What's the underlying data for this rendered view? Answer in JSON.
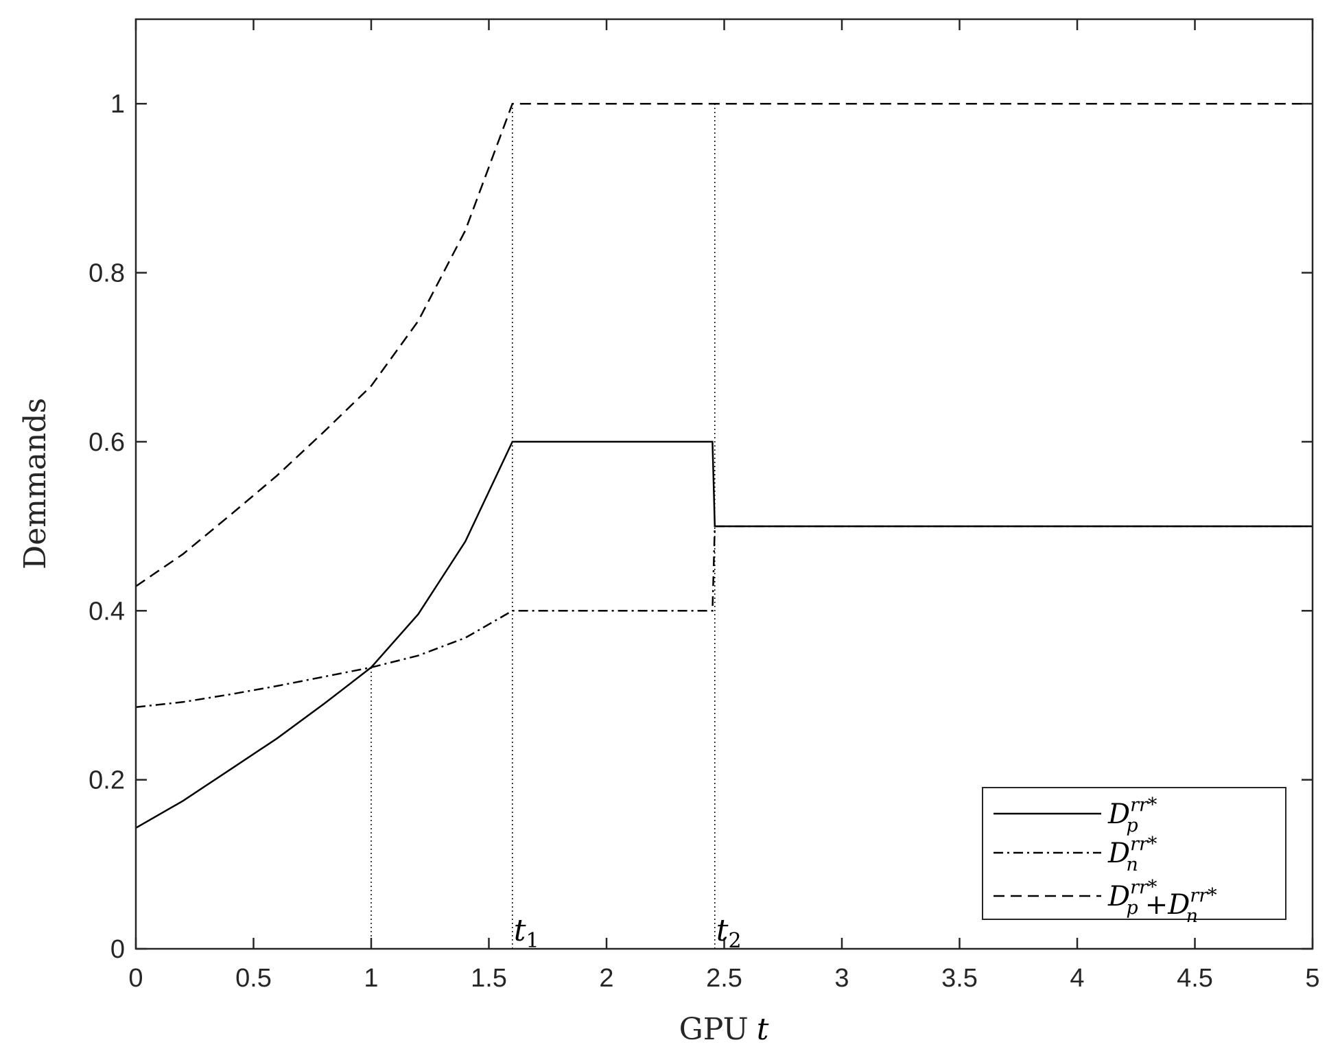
{
  "chart_data": {
    "type": "line",
    "title": "",
    "xlabel": "GPU",
    "xlabel_var": "t",
    "ylabel": "Demmands",
    "xlim": [
      0,
      5
    ],
    "ylim": [
      0,
      1.1
    ],
    "xticks": [
      0,
      0.5,
      1,
      1.5,
      2,
      2.5,
      3,
      3.5,
      4,
      4.5,
      5
    ],
    "xtick_labels": [
      "0",
      "0.5",
      "1",
      "1.5",
      "2",
      "2.5",
      "3",
      "3.5",
      "4",
      "4.5",
      "5"
    ],
    "yticks": [
      0,
      0.2,
      0.4,
      0.6,
      0.8,
      1
    ],
    "ytick_labels": [
      "0",
      "0.2",
      "0.4",
      "0.6",
      "0.8",
      "1"
    ],
    "grid": false,
    "legend_position": "bottom-right",
    "series": [
      {
        "key": "Dp",
        "style": "solid",
        "x": [
          0,
          0.2,
          0.4,
          0.6,
          0.8,
          1.0,
          1.2,
          1.4,
          1.6,
          2.45,
          2.46,
          5
        ],
        "y": [
          0.143,
          0.175,
          0.212,
          0.249,
          0.29,
          0.333,
          0.396,
          0.482,
          0.6,
          0.6,
          0.5,
          0.5
        ]
      },
      {
        "key": "Dn",
        "style": "dashdot",
        "x": [
          0,
          0.2,
          0.4,
          0.6,
          0.8,
          1.0,
          1.2,
          1.4,
          1.6,
          2.45,
          2.46,
          5
        ],
        "y": [
          0.286,
          0.292,
          0.301,
          0.311,
          0.322,
          0.333,
          0.347,
          0.368,
          0.4,
          0.4,
          0.5,
          0.5
        ]
      },
      {
        "key": "Dsum",
        "style": "dashed",
        "x": [
          0,
          0.2,
          0.4,
          0.6,
          0.8,
          1.0,
          1.2,
          1.4,
          1.6,
          5
        ],
        "y": [
          0.429,
          0.467,
          0.513,
          0.56,
          0.612,
          0.666,
          0.743,
          0.85,
          1.0,
          1.0
        ]
      }
    ],
    "reference_lines": [
      {
        "x": 1.0,
        "y_top": 0.333
      },
      {
        "x": 1.6,
        "y_top": 1.0,
        "label": "t",
        "sub": "1"
      },
      {
        "x": 2.46,
        "y_top": 1.0,
        "label": "t",
        "sub": "2"
      }
    ],
    "legend": {
      "entries": [
        {
          "key": "Dp",
          "base": "D",
          "sub": "p",
          "sup": "rr*"
        },
        {
          "key": "Dn",
          "base": "D",
          "sub": "n",
          "sup": "rr*"
        },
        {
          "key": "Dsum",
          "base": "D",
          "sub": "p",
          "sup": "rr*",
          "op": "+",
          "base2": "D",
          "sub2": "n",
          "sup2": "rr*"
        }
      ]
    }
  }
}
